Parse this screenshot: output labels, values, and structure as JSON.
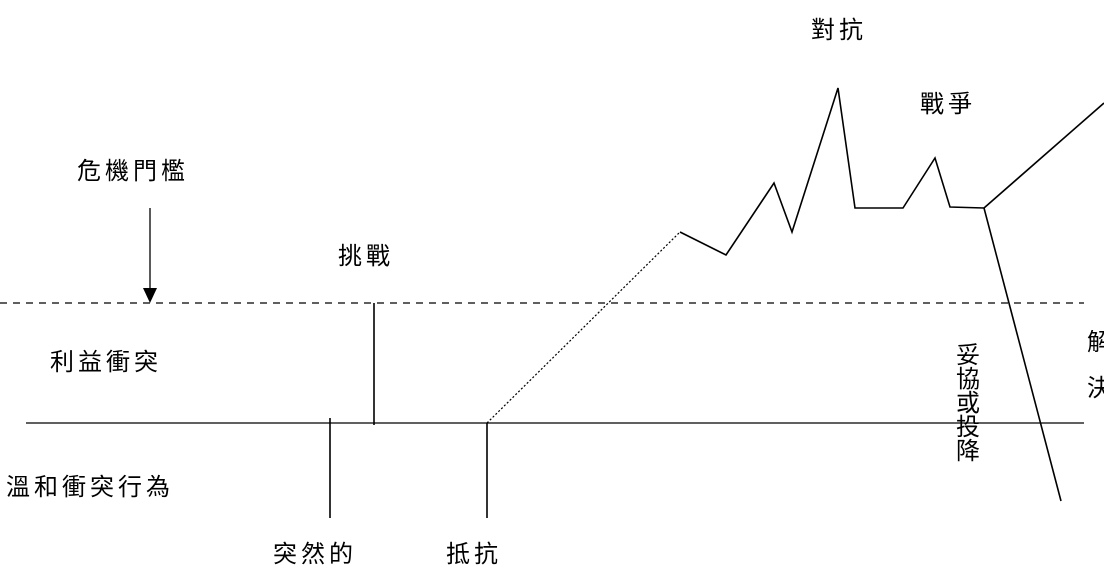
{
  "labels": {
    "crisis_threshold": "危機門檻",
    "challenge": "挑戰",
    "interest_conflict": "利益衝突",
    "mild_conflict": "溫和衝突行為",
    "sudden": "突然的",
    "resistance": "抵抗",
    "confrontation": "對抗",
    "war": "戰爭",
    "compromise_or_surrender": "妥協或投降",
    "resolution_partial": "解決"
  }
}
